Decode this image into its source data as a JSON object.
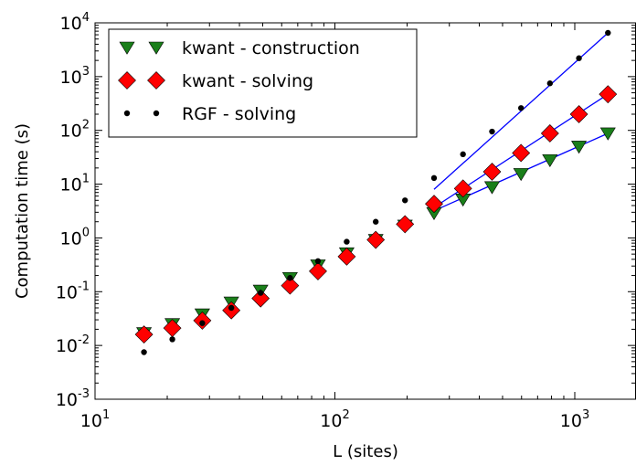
{
  "chart_data": {
    "type": "scatter",
    "xscale": "log",
    "yscale": "log",
    "xlim": [
      10,
      1800
    ],
    "ylim": [
      0.001,
      10000
    ],
    "xlabel": "L (sites)",
    "ylabel": "Computation time (s)",
    "xticks": [
      {
        "value": 10,
        "base": "10",
        "exp": "1"
      },
      {
        "value": 100,
        "base": "10",
        "exp": "2"
      },
      {
        "value": 1000,
        "base": "10",
        "exp": "3"
      }
    ],
    "yticks": [
      {
        "value": 0.001,
        "base": "10",
        "exp": "-3"
      },
      {
        "value": 0.01,
        "base": "10",
        "exp": "-2"
      },
      {
        "value": 0.1,
        "base": "10",
        "exp": "-1"
      },
      {
        "value": 1,
        "base": "10",
        "exp": "0"
      },
      {
        "value": 10,
        "base": "10",
        "exp": "1"
      },
      {
        "value": 100,
        "base": "10",
        "exp": "2"
      },
      {
        "value": 1000,
        "base": "10",
        "exp": "3"
      },
      {
        "value": 10000,
        "base": "10",
        "exp": "4"
      }
    ],
    "legend_position": "top-left",
    "series": [
      {
        "name": "kwant - construction",
        "marker": "triangle-down",
        "color": "#1a7f1a",
        "x": [
          16,
          21,
          28,
          37,
          49,
          65,
          85,
          112,
          148,
          196,
          259,
          342,
          452,
          597,
          788,
          1041,
          1375
        ],
        "y": [
          0.017,
          0.025,
          0.038,
          0.063,
          0.105,
          0.18,
          0.31,
          0.52,
          0.92,
          1.7,
          2.9,
          5.2,
          8.8,
          15.5,
          28,
          50,
          88
        ]
      },
      {
        "name": "kwant - solving",
        "marker": "diamond",
        "color": "#ff0000",
        "x": [
          16,
          21,
          28,
          37,
          49,
          65,
          85,
          112,
          148,
          196,
          259,
          342,
          452,
          597,
          788,
          1041,
          1375
        ],
        "y": [
          0.016,
          0.021,
          0.029,
          0.045,
          0.075,
          0.13,
          0.24,
          0.45,
          0.92,
          1.8,
          4.3,
          8.3,
          17,
          38,
          88,
          200,
          470
        ]
      },
      {
        "name": "RGF - solving",
        "marker": "dot",
        "color": "#000000",
        "x": [
          16,
          21,
          28,
          37,
          49,
          65,
          85,
          112,
          148,
          196,
          259,
          342,
          452,
          597,
          788,
          1041,
          1375
        ],
        "y": [
          0.0075,
          0.013,
          0.026,
          0.05,
          0.095,
          0.18,
          0.37,
          0.85,
          2.0,
          5.0,
          13,
          36,
          95,
          260,
          750,
          2200,
          6500
        ]
      }
    ],
    "fit_lines": [
      {
        "color": "#0000ff",
        "x": [
          259,
          1375
        ],
        "y": [
          8.0,
          6500
        ]
      },
      {
        "color": "#0000ff",
        "x": [
          259,
          1375
        ],
        "y": [
          3.7,
          470
        ]
      },
      {
        "color": "#0000ff",
        "x": [
          259,
          1375
        ],
        "y": [
          3.2,
          88
        ]
      }
    ]
  }
}
